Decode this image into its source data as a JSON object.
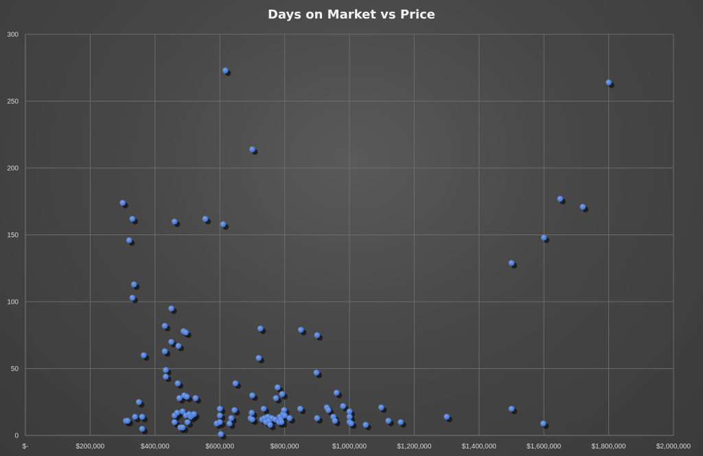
{
  "chart_data": {
    "type": "scatter",
    "title": "Days on Market vs Price",
    "xlabel": "",
    "ylabel": "",
    "xlim": [
      0,
      2000000
    ],
    "ylim": [
      0,
      300
    ],
    "x_ticks": [
      0,
      200000,
      400000,
      600000,
      800000,
      1000000,
      1200000,
      1400000,
      1600000,
      1800000,
      2000000
    ],
    "x_tick_labels": [
      "$-",
      "$200,000",
      "$400,000",
      "$600,000",
      "$800,000",
      "$1,000,000",
      "$1,200,000",
      "$1,400,000",
      "$1,600,000",
      "$1,800,000",
      "$2,000,000"
    ],
    "y_ticks": [
      0,
      50,
      100,
      150,
      200,
      250,
      300
    ],
    "y_tick_labels": [
      "0",
      "50",
      "100",
      "150",
      "200",
      "250",
      "300"
    ],
    "grid": true,
    "point_color": "#4f7fd8",
    "points": [
      [
        300000,
        174
      ],
      [
        310000,
        11
      ],
      [
        315000,
        11
      ],
      [
        320000,
        146
      ],
      [
        330000,
        162
      ],
      [
        330000,
        103
      ],
      [
        335000,
        113
      ],
      [
        338000,
        14
      ],
      [
        350000,
        25
      ],
      [
        360000,
        14
      ],
      [
        360000,
        5
      ],
      [
        365000,
        60
      ],
      [
        430000,
        63
      ],
      [
        430000,
        82
      ],
      [
        433000,
        49
      ],
      [
        433000,
        44
      ],
      [
        450000,
        95
      ],
      [
        450000,
        70
      ],
      [
        460000,
        160
      ],
      [
        460000,
        15
      ],
      [
        460000,
        10
      ],
      [
        468000,
        17
      ],
      [
        470000,
        39
      ],
      [
        472000,
        67
      ],
      [
        475000,
        28
      ],
      [
        478000,
        6
      ],
      [
        485000,
        6
      ],
      [
        485000,
        18
      ],
      [
        488000,
        78
      ],
      [
        490000,
        30
      ],
      [
        495000,
        77
      ],
      [
        495000,
        15
      ],
      [
        498000,
        29
      ],
      [
        500000,
        10
      ],
      [
        505000,
        16
      ],
      [
        510000,
        14
      ],
      [
        515000,
        15
      ],
      [
        520000,
        16
      ],
      [
        525000,
        28
      ],
      [
        555000,
        162
      ],
      [
        590000,
        9
      ],
      [
        600000,
        20
      ],
      [
        600000,
        15
      ],
      [
        600000,
        10
      ],
      [
        603000,
        1
      ],
      [
        610000,
        158
      ],
      [
        617000,
        273
      ],
      [
        630000,
        9
      ],
      [
        635000,
        13
      ],
      [
        645000,
        19
      ],
      [
        648000,
        39
      ],
      [
        695000,
        13
      ],
      [
        698000,
        17
      ],
      [
        700000,
        12
      ],
      [
        700000,
        214
      ],
      [
        700000,
        30
      ],
      [
        720000,
        58
      ],
      [
        725000,
        80
      ],
      [
        730000,
        12
      ],
      [
        735000,
        20
      ],
      [
        738000,
        13
      ],
      [
        742000,
        10
      ],
      [
        748000,
        14
      ],
      [
        752000,
        11
      ],
      [
        755000,
        8
      ],
      [
        760000,
        13
      ],
      [
        770000,
        12
      ],
      [
        773000,
        28
      ],
      [
        778000,
        36
      ],
      [
        782000,
        10
      ],
      [
        785000,
        14
      ],
      [
        788000,
        12
      ],
      [
        790000,
        10
      ],
      [
        792000,
        31
      ],
      [
        795000,
        16
      ],
      [
        798000,
        19
      ],
      [
        800000,
        15
      ],
      [
        815000,
        13
      ],
      [
        848000,
        20
      ],
      [
        850000,
        79
      ],
      [
        898000,
        47
      ],
      [
        900000,
        13
      ],
      [
        900000,
        75
      ],
      [
        930000,
        21
      ],
      [
        935000,
        19
      ],
      [
        950000,
        14
      ],
      [
        955000,
        11
      ],
      [
        960000,
        32
      ],
      [
        980000,
        22
      ],
      [
        1000000,
        18
      ],
      [
        1000000,
        14
      ],
      [
        1000000,
        10
      ],
      [
        1005000,
        9
      ],
      [
        1050000,
        8
      ],
      [
        1098000,
        21
      ],
      [
        1120000,
        11
      ],
      [
        1158000,
        10
      ],
      [
        1300000,
        14
      ],
      [
        1500000,
        129
      ],
      [
        1500000,
        20
      ],
      [
        1600000,
        148
      ],
      [
        1598000,
        9
      ],
      [
        1650000,
        177
      ],
      [
        1720000,
        171
      ],
      [
        1800000,
        264
      ]
    ]
  }
}
